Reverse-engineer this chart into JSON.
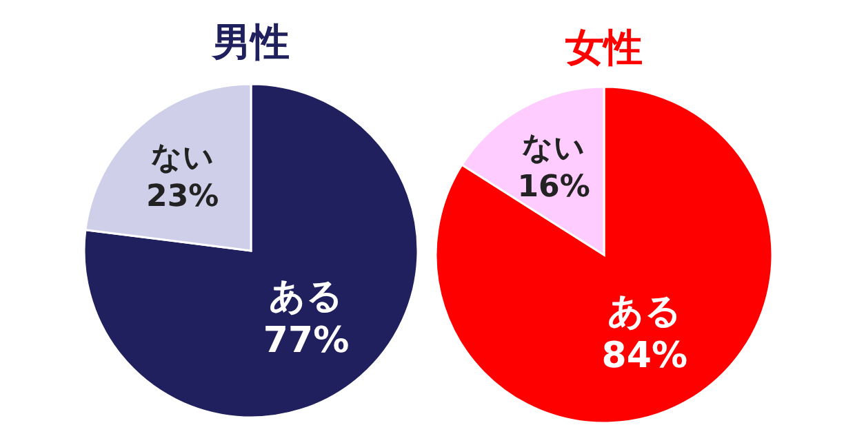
{
  "chart_data": [
    {
      "type": "pie",
      "title": "男性",
      "categories": [
        "ある",
        "ない"
      ],
      "values": [
        77,
        23
      ],
      "colors": [
        "#20205e",
        "#cfcfe9"
      ],
      "value_labels": [
        "77%",
        "23%"
      ]
    },
    {
      "type": "pie",
      "title": "女性",
      "categories": [
        "ある",
        "ない"
      ],
      "values": [
        84,
        16
      ],
      "colors": [
        "#ff0000",
        "#ffccff"
      ],
      "value_labels": [
        "84%",
        "16%"
      ]
    }
  ]
}
